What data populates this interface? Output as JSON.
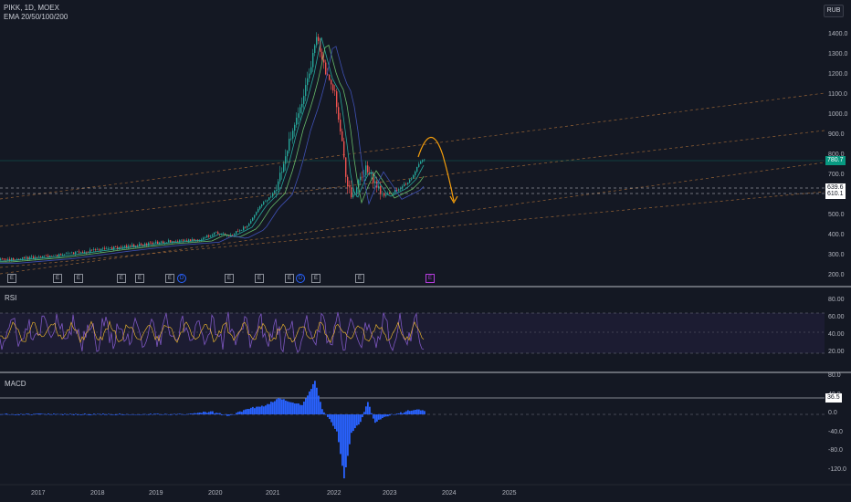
{
  "header": {
    "symbol_line": "PIKK, 1D, MOEX",
    "indicator_line": "EMA 20/50/100/200",
    "currency_badge": "RUB"
  },
  "price_pane": {
    "y_ticks": [
      "1400.0",
      "1300.0",
      "1200.0",
      "1100.0",
      "1000.0",
      "900.0",
      "800.0",
      "700.0",
      "600.0",
      "500.0",
      "400.0",
      "300.0",
      "200.0"
    ],
    "tags": [
      {
        "label": "780.7",
        "color": "#089981",
        "text_color": "#ffffff"
      },
      {
        "label": "639.6",
        "color": "#ffffff",
        "text_color": "#131722"
      },
      {
        "label": "610.1",
        "color": "#ffffff",
        "text_color": "#131722"
      }
    ],
    "earnings_markers": [
      {
        "kind": "E",
        "style": "square"
      },
      {
        "kind": "E",
        "style": "square"
      },
      {
        "kind": "E",
        "style": "square"
      },
      {
        "kind": "E",
        "style": "square"
      },
      {
        "kind": "E",
        "style": "square"
      },
      {
        "kind": "E",
        "style": "square"
      },
      {
        "kind": "D",
        "style": "circle"
      },
      {
        "kind": "E",
        "style": "square"
      },
      {
        "kind": "E",
        "style": "square"
      },
      {
        "kind": "E",
        "style": "square"
      },
      {
        "kind": "D",
        "style": "circle"
      },
      {
        "kind": "E",
        "style": "square"
      },
      {
        "kind": "E",
        "style": "square"
      },
      {
        "kind": "E",
        "style": "purple"
      }
    ]
  },
  "rsi_pane": {
    "title": "RSI",
    "y_ticks": [
      "80.00",
      "60.00",
      "40.00",
      "20.00"
    ]
  },
  "macd_pane": {
    "title": "MACD",
    "y_ticks": [
      "80.0",
      "40.0",
      "0.0",
      "-40.0",
      "-80.0",
      "-120.0"
    ],
    "tag": "36.5"
  },
  "time_axis": {
    "labels": [
      "2017",
      "2018",
      "2019",
      "2020",
      "2021",
      "2022",
      "2023",
      "2024",
      "2025"
    ]
  },
  "colors": {
    "background": "#141823",
    "up_candle": "#26a69a",
    "down_candle": "#ef5350",
    "forecast_arrow": "#f59e0b",
    "rsi_line": "#7e57c2",
    "rsi_signal": "#fbc02d",
    "macd_hist": "#2962ff"
  }
}
